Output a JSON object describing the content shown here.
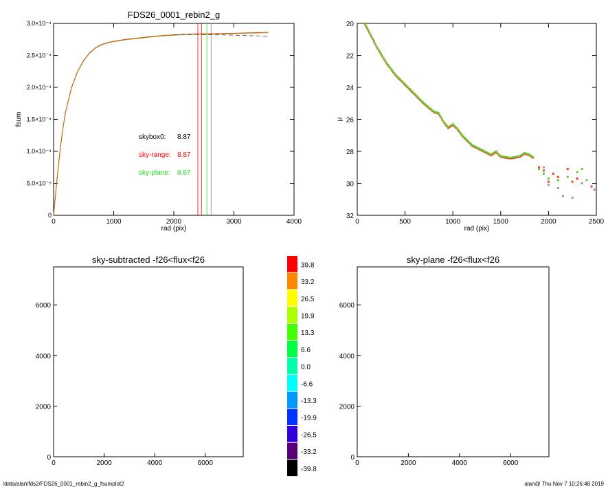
{
  "colors": {
    "sky_range": "#ff0000",
    "sky_plane": "#22dd22",
    "profile": "#e05010",
    "mu_red": "#ff3b1f",
    "mu_green": "#66cc33",
    "mu_gray": "#999999"
  },
  "footer": {
    "path": "/data/alan/fds2/FDS26_0001_rebin2_g_fsumplot2",
    "stamp": "alan@  Thu Nov  7 10:26:48 2019"
  },
  "chart_data": [
    {
      "id": "growth-curve",
      "type": "line",
      "title": "FDS26_0001_rebin2_g",
      "xlabel": "rad (pix)",
      "ylabel": "fsum",
      "xlim": [
        0,
        4000
      ],
      "ylim": [
        0,
        0.0003
      ],
      "x_ticks": [
        "0",
        "1000",
        "2000",
        "3000",
        "4000"
      ],
      "y_ticks": [
        "0",
        "5.0×10⁻⁵",
        "1.0×10⁻⁴",
        "1.5×10⁻⁴",
        "2.0×10⁻⁴",
        "2.5×10⁻⁴",
        "3.0×10⁻⁴"
      ],
      "series": [
        {
          "x": [
            0,
            50,
            100,
            150,
            200,
            300,
            400,
            500,
            600,
            700,
            800,
            900,
            1000,
            1200,
            1400,
            1600,
            1800,
            2000,
            2200,
            2400,
            2600,
            2800,
            3000,
            3200,
            3400,
            3570
          ],
          "y": [
            0,
            5e-05,
            9.5e-05,
            0.000133,
            0.000162,
            0.0002,
            0.000225,
            0.000242,
            0.000254,
            0.000262,
            0.000267,
            0.00027,
            0.000272,
            0.000275,
            0.000277,
            0.000279,
            0.000281,
            0.000282,
            0.000283,
            0.0002835,
            0.0002838,
            0.000284,
            0.0002845,
            0.000285,
            0.0002855,
            0.000286
          ]
        }
      ],
      "dashed_curve": {
        "x": [
          2000,
          2400,
          2800,
          3200,
          3570
        ],
        "y": [
          0.0002825,
          0.0002825,
          0.000282,
          0.000281,
          0.00028
        ]
      },
      "vlines": [
        {
          "x": 2400,
          "color": "#ff0000"
        },
        {
          "x": 2460,
          "color": "#ff0000"
        },
        {
          "x": 2550,
          "color": "#22dd22"
        },
        {
          "x": 2620,
          "color": "#888888"
        }
      ],
      "annotations": [
        {
          "label": "skybox0:",
          "value": "8.87",
          "color": "#000000"
        },
        {
          "label": "sky-range:",
          "value": "8.87",
          "color": "#ff0000"
        },
        {
          "label": "sky-plane:",
          "value": "8.87",
          "color": "#22dd22"
        }
      ]
    },
    {
      "id": "surface-brightness",
      "type": "scatter",
      "title": "",
      "xlabel": "rad (pix)",
      "ylabel": "μ",
      "xlim": [
        0,
        2500
      ],
      "ylim": [
        32,
        20
      ],
      "x_ticks": [
        "0",
        "500",
        "1000",
        "1500",
        "2000",
        "2500"
      ],
      "y_ticks": [
        "20",
        "22",
        "24",
        "26",
        "28",
        "30",
        "32"
      ],
      "profile": {
        "x": [
          80,
          150,
          200,
          300,
          400,
          500,
          600,
          700,
          800,
          850,
          900,
          950,
          1000,
          1050,
          1100,
          1200,
          1300,
          1400,
          1450,
          1500,
          1600,
          1700,
          1750,
          1800,
          1850
        ],
        "y": [
          20.0,
          20.8,
          21.4,
          22.4,
          23.2,
          23.8,
          24.4,
          25.0,
          25.5,
          25.6,
          26.1,
          26.5,
          26.3,
          26.6,
          27.0,
          27.6,
          27.9,
          28.2,
          28.0,
          28.3,
          28.4,
          28.3,
          28.1,
          28.2,
          28.4
        ]
      },
      "tail_points": [
        {
          "x": 1900,
          "y": 29.0,
          "series": "red"
        },
        {
          "x": 1950,
          "y": 29.2,
          "series": "red"
        },
        {
          "x": 2000,
          "y": 29.9,
          "series": "red"
        },
        {
          "x": 2050,
          "y": 29.4,
          "series": "red"
        },
        {
          "x": 2100,
          "y": 29.6,
          "series": "red"
        },
        {
          "x": 2200,
          "y": 29.1,
          "series": "red"
        },
        {
          "x": 2250,
          "y": 29.9,
          "series": "red"
        },
        {
          "x": 2300,
          "y": 29.7,
          "series": "red"
        },
        {
          "x": 2450,
          "y": 30.2,
          "series": "red"
        },
        {
          "x": 1900,
          "y": 29.1,
          "series": "green"
        },
        {
          "x": 1950,
          "y": 29.4,
          "series": "green"
        },
        {
          "x": 2000,
          "y": 29.7,
          "series": "green"
        },
        {
          "x": 2100,
          "y": 29.8,
          "series": "green"
        },
        {
          "x": 2200,
          "y": 29.6,
          "series": "green"
        },
        {
          "x": 2300,
          "y": 29.3,
          "series": "green"
        },
        {
          "x": 2350,
          "y": 29.1,
          "series": "green"
        },
        {
          "x": 2400,
          "y": 29.8,
          "series": "green"
        },
        {
          "x": 1950,
          "y": 29.0,
          "series": "gray"
        },
        {
          "x": 2000,
          "y": 30.1,
          "series": "gray"
        },
        {
          "x": 2100,
          "y": 30.3,
          "series": "gray"
        },
        {
          "x": 2150,
          "y": 30.8,
          "series": "gray"
        },
        {
          "x": 2250,
          "y": 30.9,
          "series": "gray"
        },
        {
          "x": 2350,
          "y": 30.0,
          "series": "gray"
        },
        {
          "x": 2480,
          "y": 30.4,
          "series": "gray"
        }
      ]
    },
    {
      "id": "sky-subtracted-map",
      "type": "heatmap",
      "title": "sky-subtracted -f26<flux<f26",
      "xlim": [
        0,
        7500
      ],
      "ylim": [
        0,
        7500
      ],
      "x_ticks": [
        "0",
        "2000",
        "4000",
        "6000"
      ],
      "y_ticks": [
        "0",
        "2000",
        "4000",
        "6000"
      ]
    },
    {
      "id": "colorbar",
      "type": "table",
      "labels": [
        "39.8",
        "33.2",
        "26.5",
        "19.9",
        "13.3",
        "6.6",
        "0.0",
        "-6.6",
        "-13.3",
        "-19.9",
        "-26.5",
        "-33.2",
        "-39.8"
      ],
      "colors": [
        "#ff0000",
        "#ff8800",
        "#ffff00",
        "#aaff00",
        "#44ff00",
        "#00ff44",
        "#00ffaa",
        "#00ffff",
        "#0099ff",
        "#0033ff",
        "#3300dd",
        "#5a0077",
        "#000000"
      ]
    },
    {
      "id": "sky-plane-map",
      "type": "heatmap",
      "title": "sky-plane -f26<flux<f26",
      "xlim": [
        0,
        7500
      ],
      "ylim": [
        0,
        7500
      ],
      "x_ticks": [
        "0",
        "2000",
        "4000",
        "6000"
      ],
      "y_ticks": [
        "0",
        "2000",
        "4000",
        "6000"
      ]
    }
  ]
}
